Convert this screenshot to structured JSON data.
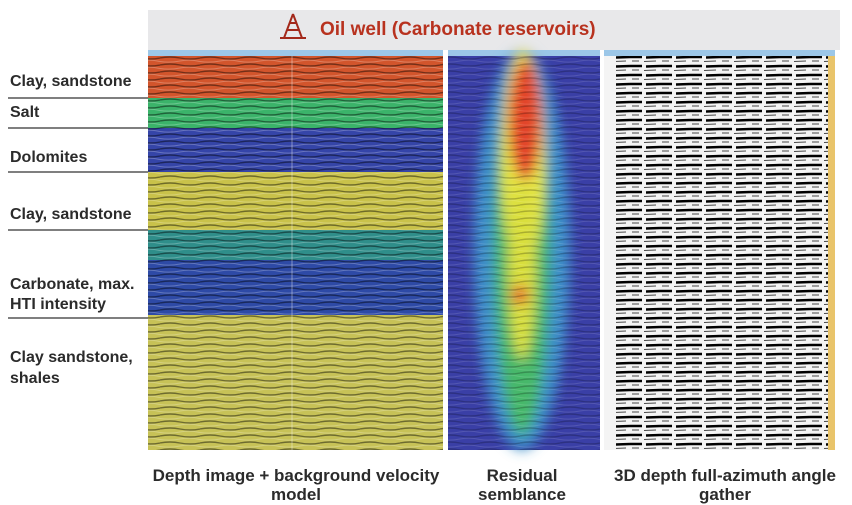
{
  "header": {
    "title": "Oil well (Carbonate reservoirs)"
  },
  "layers": [
    [
      "Clay, sandstone"
    ],
    [
      "Salt"
    ],
    [
      "Dolomites"
    ],
    [
      "Clay, sandstone"
    ],
    [
      "Carbonate, max.",
      "HTI intensity"
    ],
    [
      "Clay sandstone,",
      "shales"
    ]
  ],
  "panels": [
    [
      "Depth image + background velocity",
      "model"
    ],
    [
      "Residual",
      "semblance"
    ],
    [
      "3D depth full-azimuth angle",
      "gather"
    ]
  ]
}
